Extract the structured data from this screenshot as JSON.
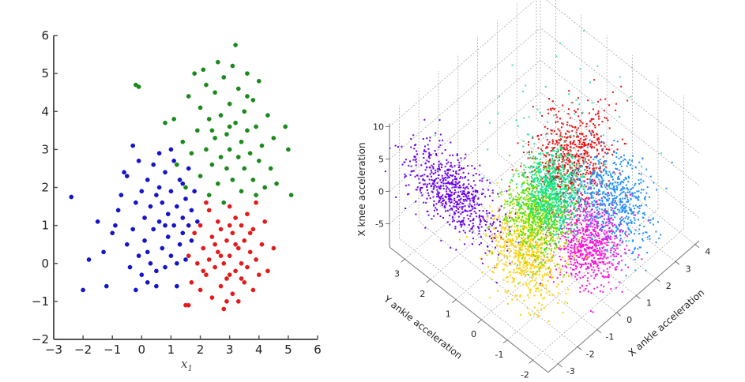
{
  "chart_data": [
    {
      "type": "scatter",
      "title": "",
      "xlabel": "x1",
      "ylabel": "",
      "xlim": [
        -3,
        6
      ],
      "ylim": [
        -2,
        6
      ],
      "xticks": [
        "−3",
        "−2",
        "−1",
        "0",
        "1",
        "2",
        "3",
        "4",
        "5",
        "6"
      ],
      "yticks": [
        "−2",
        "−1",
        "0",
        "1",
        "2",
        "3",
        "4",
        "5",
        "6"
      ],
      "grid": false,
      "series": [
        {
          "color": "#1414c8",
          "points": [
            [
              -2.4,
              1.75
            ],
            [
              -2.0,
              -0.7
            ],
            [
              -1.8,
              0.1
            ],
            [
              -1.2,
              -0.6
            ],
            [
              -1.3,
              0.3
            ],
            [
              -1.0,
              0.8
            ],
            [
              -0.9,
              1.0
            ],
            [
              -0.8,
              1.4
            ],
            [
              -0.6,
              2.4
            ],
            [
              -0.5,
              2.3
            ],
            [
              -0.3,
              3.1
            ],
            [
              -0.1,
              2.7
            ],
            [
              -0.5,
              0.5
            ],
            [
              -0.4,
              -0.1
            ],
            [
              -0.3,
              0.9
            ],
            [
              -0.2,
              1.6
            ],
            [
              -0.1,
              0.2
            ],
            [
              0.0,
              1.9
            ],
            [
              0.0,
              -0.3
            ],
            [
              0.1,
              1.2
            ],
            [
              0.1,
              0.6
            ],
            [
              0.2,
              2.2
            ],
            [
              0.2,
              -0.5
            ],
            [
              0.3,
              1.5
            ],
            [
              0.3,
              0.0
            ],
            [
              0.4,
              2.6
            ],
            [
              0.4,
              0.9
            ],
            [
              0.5,
              1.8
            ],
            [
              0.5,
              -0.2
            ],
            [
              0.6,
              1.1
            ],
            [
              0.6,
              2.0
            ],
            [
              0.7,
              0.4
            ],
            [
              0.7,
              1.6
            ],
            [
              0.8,
              2.4
            ],
            [
              0.8,
              -0.1
            ],
            [
              0.9,
              1.3
            ],
            [
              0.9,
              0.7
            ],
            [
              1.0,
              1.9
            ],
            [
              1.0,
              0.2
            ],
            [
              1.1,
              1.0
            ],
            [
              1.1,
              2.7
            ],
            [
              1.2,
              1.5
            ],
            [
              1.2,
              -0.6
            ],
            [
              1.3,
              0.5
            ],
            [
              1.3,
              2.2
            ],
            [
              1.4,
              1.2
            ],
            [
              1.4,
              0.8
            ],
            [
              1.5,
              1.7
            ],
            [
              1.5,
              0.1
            ],
            [
              1.6,
              1.0
            ],
            [
              1.6,
              2.5
            ],
            [
              1.7,
              1.4
            ],
            [
              1.7,
              0.6
            ],
            [
              1.8,
              1.9
            ],
            [
              1.9,
              1.1
            ],
            [
              1.0,
              3.0
            ],
            [
              0.5,
              -0.6
            ],
            [
              -0.7,
              1.8
            ],
            [
              -1.5,
              1.1
            ],
            [
              0.2,
              0.3
            ],
            [
              0.8,
              1.0
            ],
            [
              1.2,
              0.0
            ],
            [
              -0.2,
              -0.7
            ],
            [
              0.6,
              2.9
            ],
            [
              1.4,
              2.1
            ]
          ]
        },
        {
          "color": "#1a8a1a",
          "points": [
            [
              -0.2,
              4.7
            ],
            [
              -0.1,
              4.65
            ],
            [
              0.8,
              3.7
            ],
            [
              1.1,
              3.8
            ],
            [
              1.2,
              2.6
            ],
            [
              1.4,
              3.2
            ],
            [
              1.5,
              2.0
            ],
            [
              1.6,
              4.4
            ],
            [
              1.7,
              2.9
            ],
            [
              1.8,
              5.0
            ],
            [
              1.9,
              3.5
            ],
            [
              2.0,
              2.3
            ],
            [
              2.0,
              4.1
            ],
            [
              2.1,
              5.1
            ],
            [
              2.2,
              3.0
            ],
            [
              2.3,
              1.8
            ],
            [
              2.3,
              3.8
            ],
            [
              2.4,
              2.6
            ],
            [
              2.5,
              4.5
            ],
            [
              2.5,
              3.3
            ],
            [
              2.6,
              5.3
            ],
            [
              2.6,
              2.1
            ],
            [
              2.7,
              3.9
            ],
            [
              2.7,
              2.8
            ],
            [
              2.8,
              4.9
            ],
            [
              2.8,
              1.6
            ],
            [
              2.9,
              3.4
            ],
            [
              2.9,
              2.5
            ],
            [
              3.0,
              4.2
            ],
            [
              3.0,
              3.0
            ],
            [
              3.1,
              5.2
            ],
            [
              3.1,
              2.2
            ],
            [
              3.2,
              5.75
            ],
            [
              3.2,
              3.7
            ],
            [
              3.3,
              2.8
            ],
            [
              3.3,
              4.6
            ],
            [
              3.4,
              3.2
            ],
            [
              3.4,
              1.9
            ],
            [
              3.5,
              4.0
            ],
            [
              3.5,
              2.5
            ],
            [
              3.6,
              3.5
            ],
            [
              3.6,
              5.0
            ],
            [
              3.7,
              2.9
            ],
            [
              3.8,
              4.3
            ],
            [
              3.8,
              2.2
            ],
            [
              3.9,
              3.6
            ],
            [
              4.0,
              2.7
            ],
            [
              4.0,
              4.8
            ],
            [
              4.1,
              3.1
            ],
            [
              4.2,
              2.0
            ],
            [
              4.3,
              3.9
            ],
            [
              4.4,
              2.5
            ],
            [
              4.5,
              3.3
            ],
            [
              4.6,
              2.1
            ],
            [
              4.9,
              3.6
            ],
            [
              5.0,
              3.0
            ],
            [
              5.1,
              1.8
            ],
            [
              3.0,
              3.6
            ],
            [
              2.4,
              3.5
            ],
            [
              3.6,
              4.4
            ],
            [
              2.2,
              4.7
            ],
            [
              3.9,
              1.8
            ]
          ]
        },
        {
          "color": "#e41a1a",
          "points": [
            [
              1.5,
              -1.1
            ],
            [
              1.6,
              -1.1
            ],
            [
              1.6,
              0.2
            ],
            [
              1.7,
              -0.5
            ],
            [
              1.8,
              0.8
            ],
            [
              1.9,
              0.0
            ],
            [
              2.0,
              -0.7
            ],
            [
              2.0,
              1.0
            ],
            [
              2.1,
              0.4
            ],
            [
              2.2,
              -0.3
            ],
            [
              2.3,
              1.4
            ],
            [
              2.3,
              0.1
            ],
            [
              2.4,
              -0.9
            ],
            [
              2.4,
              0.7
            ],
            [
              2.5,
              -0.1
            ],
            [
              2.6,
              1.1
            ],
            [
              2.6,
              0.3
            ],
            [
              2.7,
              -0.6
            ],
            [
              2.7,
              0.9
            ],
            [
              2.8,
              -1.2
            ],
            [
              2.8,
              0.0
            ],
            [
              2.9,
              0.6
            ],
            [
              2.9,
              -0.4
            ],
            [
              3.0,
              1.5
            ],
            [
              3.0,
              0.2
            ],
            [
              3.1,
              -0.8
            ],
            [
              3.1,
              0.8
            ],
            [
              3.2,
              -0.2
            ],
            [
              3.2,
              1.2
            ],
            [
              3.3,
              0.4
            ],
            [
              3.3,
              -1.0
            ],
            [
              3.4,
              0.0
            ],
            [
              3.4,
              1.0
            ],
            [
              3.5,
              -0.5
            ],
            [
              3.5,
              0.6
            ],
            [
              3.6,
              1.3
            ],
            [
              3.6,
              -0.1
            ],
            [
              3.7,
              0.3
            ],
            [
              3.8,
              -0.7
            ],
            [
              3.8,
              0.9
            ],
            [
              3.9,
              1.6
            ],
            [
              3.9,
              0.1
            ],
            [
              4.0,
              -0.3
            ],
            [
              4.1,
              0.5
            ],
            [
              4.2,
              1.1
            ],
            [
              4.3,
              -0.2
            ],
            [
              4.5,
              0.4
            ],
            [
              2.9,
              -1.0
            ],
            [
              3.0,
              -0.3
            ],
            [
              2.5,
              0.5
            ],
            [
              3.2,
              0.5
            ],
            [
              2.7,
              0.2
            ],
            [
              3.4,
              -0.4
            ],
            [
              2.1,
              -0.2
            ],
            [
              3.0,
              1.0
            ],
            [
              2.2,
              1.6
            ],
            [
              3.7,
              0.8
            ]
          ]
        }
      ]
    },
    {
      "type": "scatter3d",
      "title": "",
      "xlabel": "X ankle acceleration",
      "ylabel": "Y ankle acceleration",
      "zlabel": "X knee acceleration",
      "xticks": [
        "-3",
        "-2",
        "-1",
        "0",
        "1",
        "2",
        "3",
        "4"
      ],
      "yticks": [
        "-2",
        "-1",
        "0",
        "1",
        "2",
        "3"
      ],
      "zticks": [
        "-5",
        "0",
        "5",
        "10"
      ],
      "grid": true,
      "clusters": [
        {
          "color": "#6a00ee",
          "center": [
            -2.05,
            2.28,
            0
          ],
          "std": [
            0.35,
            0.9,
            2.5
          ]
        },
        {
          "color": "#ee1010",
          "center": [
            1.86,
            0.54,
            0.5
          ],
          "std": [
            0.8,
            0.5,
            3
          ]
        },
        {
          "color": "#1e90ff",
          "center": [
            1.36,
            -1.38,
            1
          ],
          "std": [
            0.6,
            0.6,
            3
          ]
        },
        {
          "color": "#ff10d8",
          "center": [
            -0.06,
            -1.55,
            -1
          ],
          "std": [
            0.6,
            0.5,
            2.5
          ]
        },
        {
          "color": "#ffd000",
          "center": [
            -1.72,
            -0.34,
            -2
          ],
          "std": [
            0.5,
            0.6,
            3
          ]
        },
        {
          "color": "#66e000",
          "center": [
            -0.46,
            0.16,
            -1
          ],
          "std": [
            0.5,
            0.5,
            2.5
          ]
        },
        {
          "color": "#10e890",
          "center": [
            0.41,
            0.2,
            0.5
          ],
          "std": [
            0.5,
            0.4,
            2.5
          ]
        },
        {
          "color": "#40e0b0",
          "center": [
            1.5,
            1.0,
            5
          ],
          "std": [
            1.5,
            1.0,
            4
          ]
        }
      ]
    }
  ]
}
